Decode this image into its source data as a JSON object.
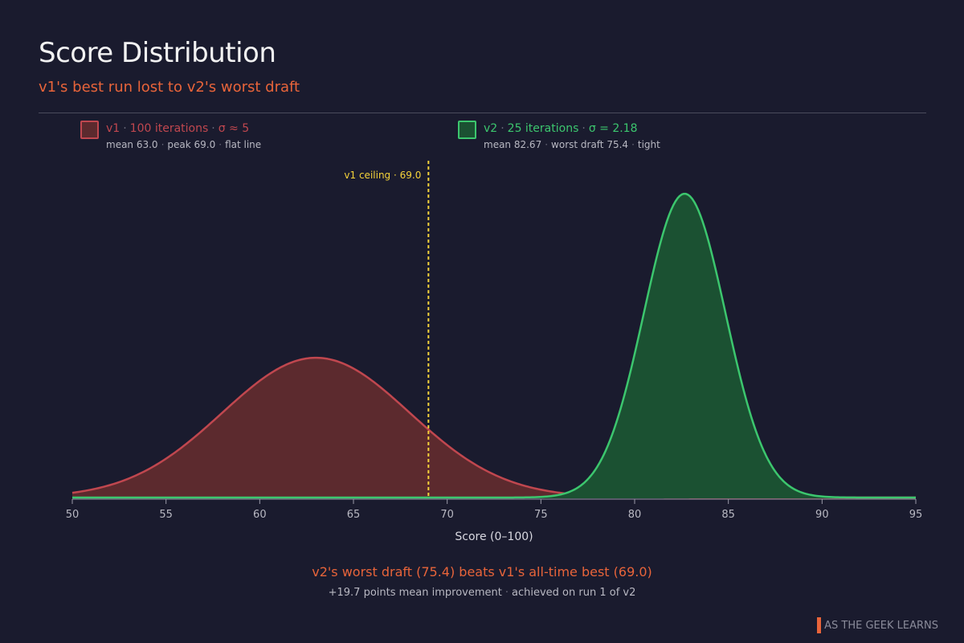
{
  "header": {
    "title": "Score Distribution",
    "subtitle": "v1's best run lost to v2's worst draft"
  },
  "legend": {
    "v1": {
      "name": "v1",
      "iterations": "100 iterations",
      "sigma": "σ ≈ 5",
      "mean": "mean 63.0",
      "peak": "peak 69.0",
      "note": "flat line"
    },
    "v2": {
      "name": "v2",
      "iterations": "25 iterations",
      "sigma": "σ = 2.18",
      "mean": "mean 82.67",
      "worst": "worst draft 75.4",
      "note": "tight"
    }
  },
  "chart_data": {
    "type": "area",
    "xlabel": "Score (0–100)",
    "xlim": [
      50,
      95
    ],
    "x_ticks": [
      50,
      55,
      60,
      65,
      70,
      75,
      80,
      85,
      90,
      95
    ],
    "series": [
      {
        "name": "v1",
        "mean": 63.0,
        "sd": 5.0,
        "relative_peak_height": 0.46,
        "fill": "#5c2a2e",
        "stroke": "#c0474f"
      },
      {
        "name": "v2",
        "mean": 82.67,
        "sd": 2.18,
        "relative_peak_height": 1.0,
        "fill": "#1b5132",
        "stroke": "#3cc66e"
      }
    ],
    "reference_line": {
      "x": 69.0,
      "label": "v1 ceiling · 69.0",
      "color": "#f5d33a"
    }
  },
  "footer": {
    "headline": "v2's worst draft (75.4) beats v1's all-time best (69.0)",
    "detail_1": "+19.7 points mean improvement",
    "detail_2": "achieved on run 1 of v2"
  },
  "brand": {
    "text": "AS THE GEEK LEARNS",
    "accent": "#e8643a"
  }
}
